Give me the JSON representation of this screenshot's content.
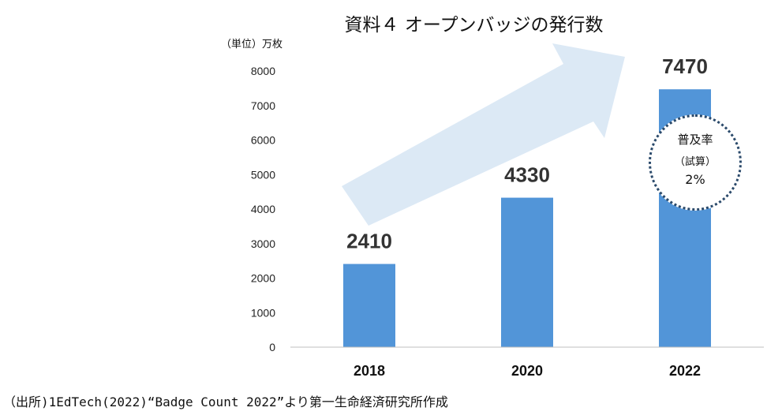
{
  "chart_data": {
    "type": "bar",
    "title": "資料４ オープンバッジの発行数",
    "unit_label": "（単位）万枚",
    "categories": [
      "2018",
      "2020",
      "2022"
    ],
    "values": [
      2410,
      4330,
      7470
    ],
    "data_labels": [
      "2410",
      "4330",
      "7470"
    ],
    "yticks": [
      "0",
      "1000",
      "2000",
      "3000",
      "4000",
      "5000",
      "6000",
      "7000",
      "8000"
    ],
    "ylim": [
      0,
      8000
    ],
    "grid": false,
    "legend": "none",
    "bar_color": "#5295d8",
    "arrow_color": "#dce9f5"
  },
  "callout": {
    "line1": "普及率",
    "line2": "（試算）",
    "line3": "2%"
  },
  "source": "（出所)1EdTech(2022)“Badge Count 2022”より第一生命経済研究所作成"
}
